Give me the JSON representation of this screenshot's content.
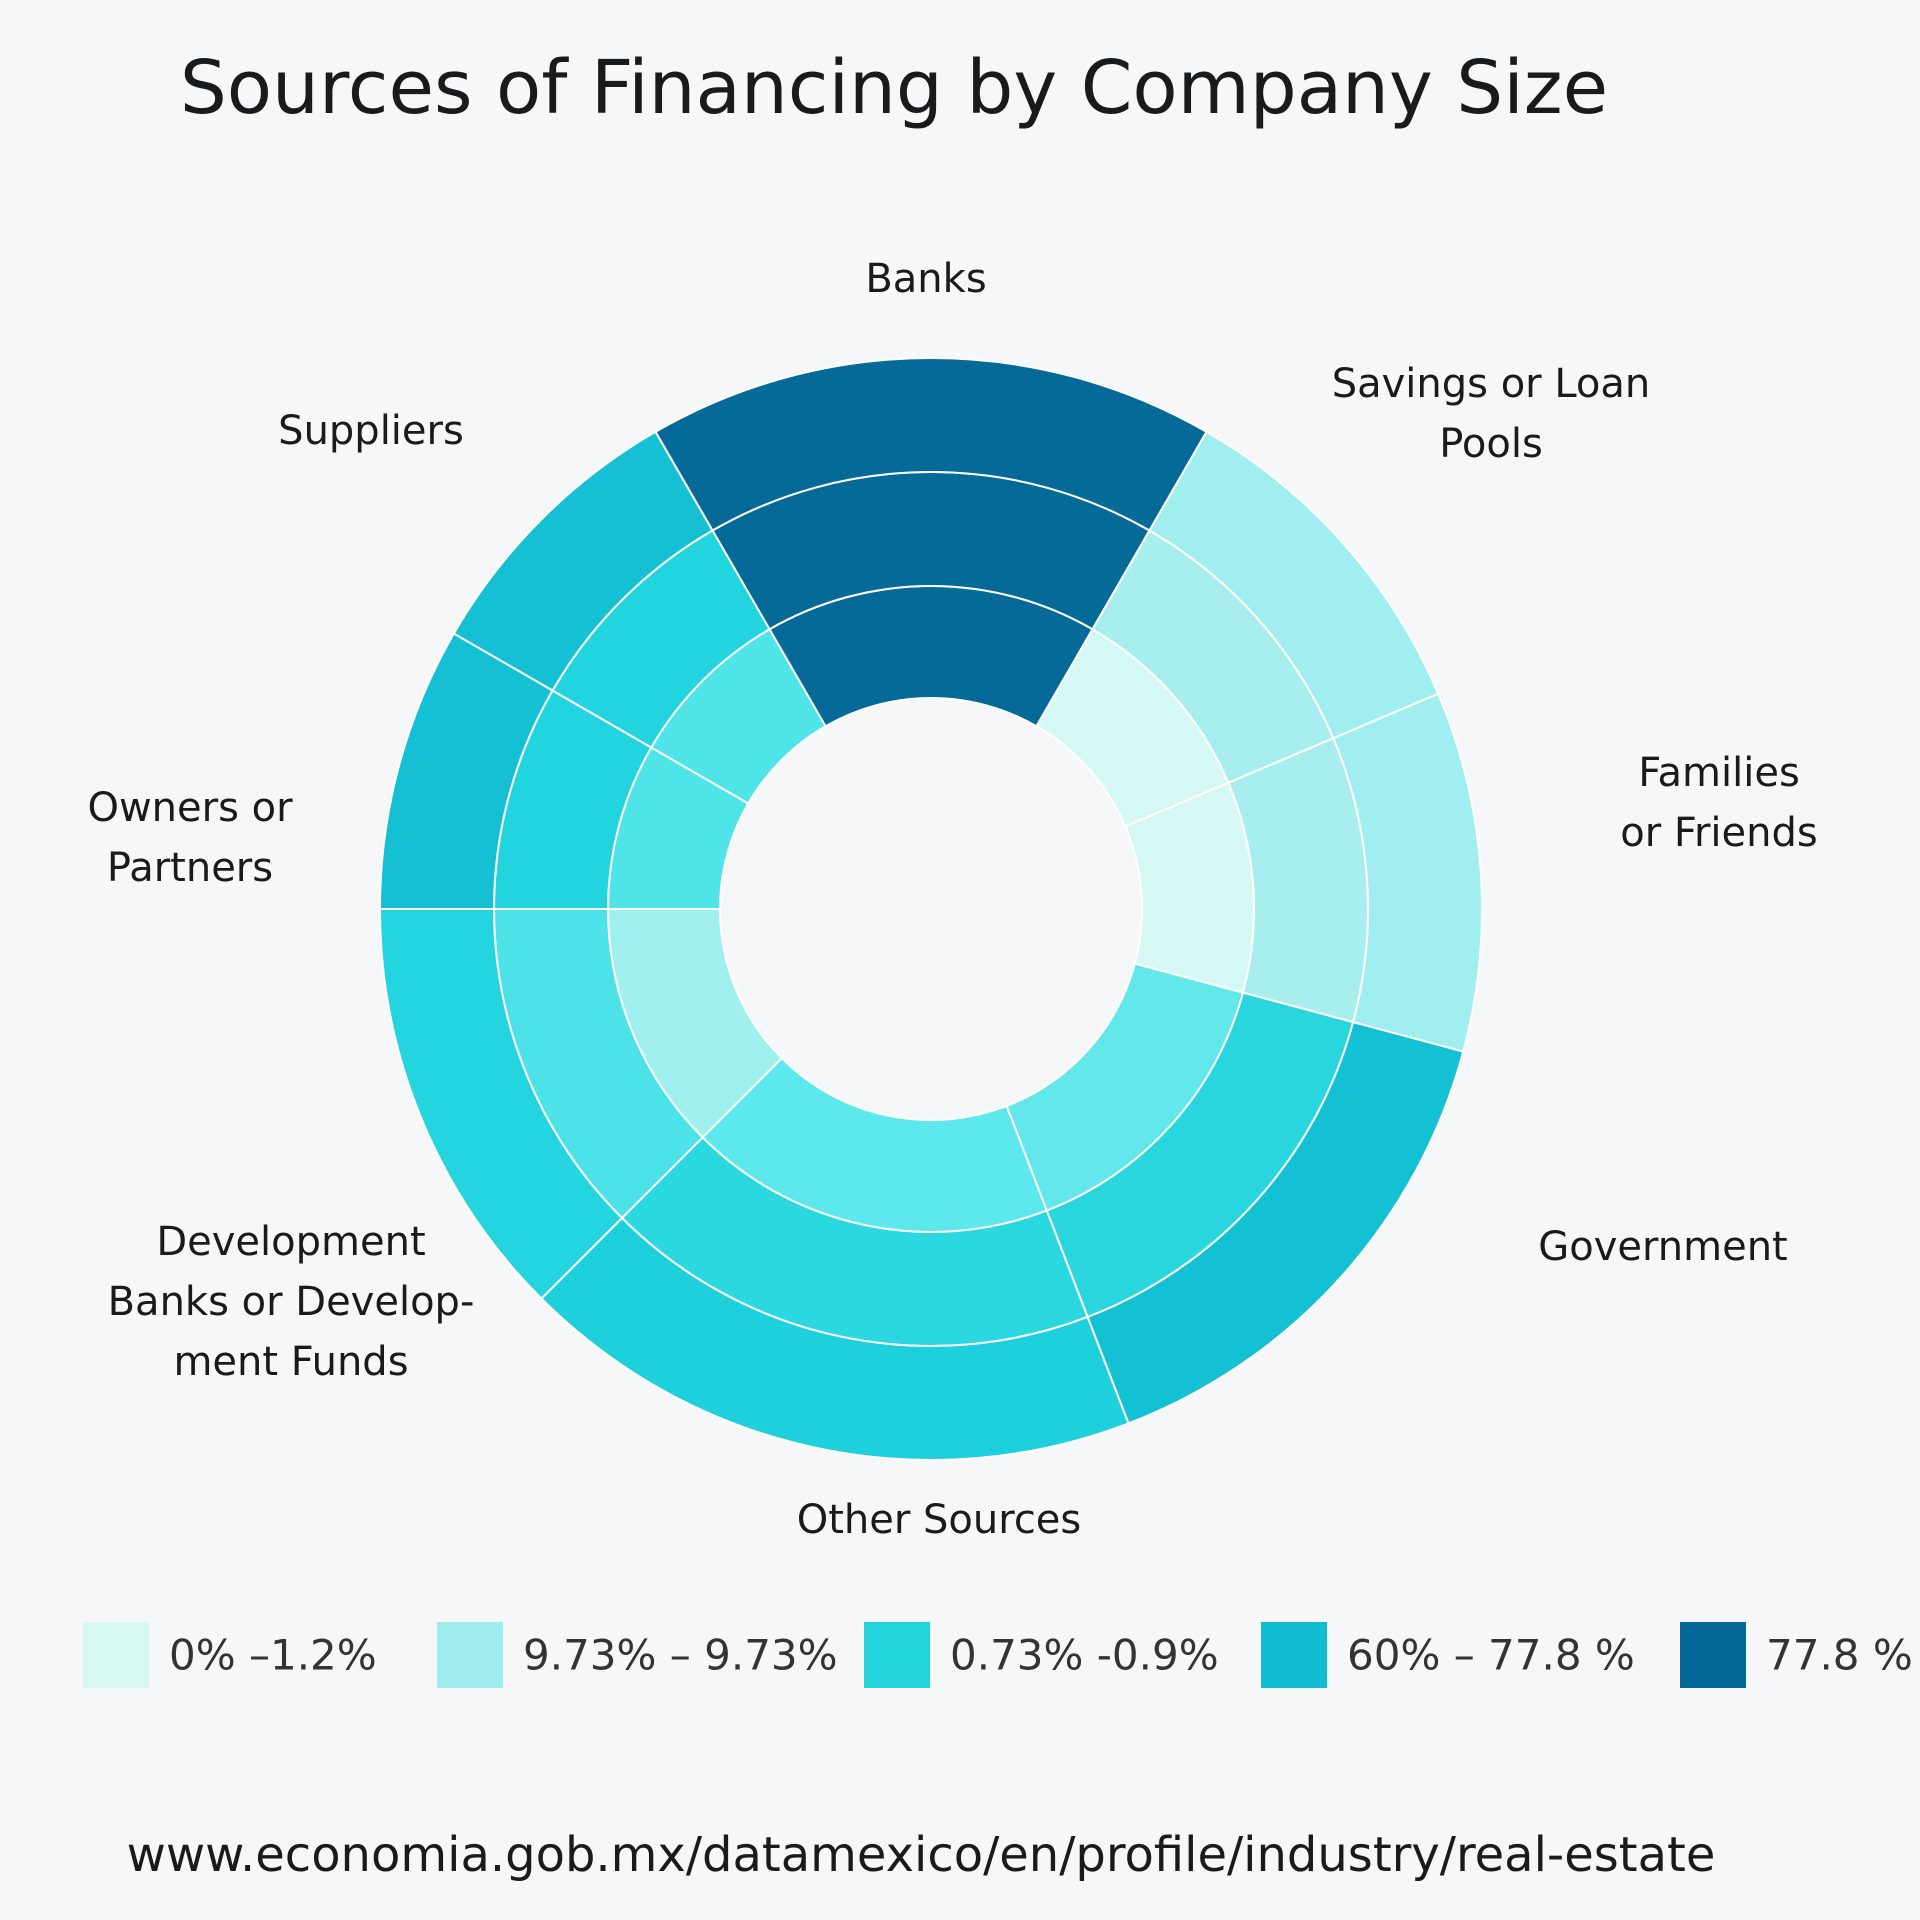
{
  "chart_data": {
    "type": "radial",
    "title": "Sources of Financing by Company Size",
    "categories": [
      "Banks",
      "Savings or Loan Pools",
      "Families or Friends",
      "Government",
      "Other Sources",
      "Development\nBanks or Develop-\nment Funds",
      "Owners  or\nPartners",
      "Suppliers"
    ],
    "values": [
      60,
      37,
      38,
      54,
      66,
      45,
      30,
      30
    ],
    "start_angle": -30,
    "rings": [
      {
        "colors": [
          "#066a98",
          "#d6f8f4",
          "#d6f8f4",
          "#62e8ea",
          "#5ce8ec",
          "#a0f0f0",
          "#4ee4e8",
          "#4ee4e8"
        ]
      },
      {
        "colors": [
          "#066a98",
          "#a8eeef",
          "#a8eeef",
          "#2ad6de",
          "#2cd8e0",
          "#4ce2e8",
          "#22d4de",
          "#22d4de"
        ]
      },
      {
        "colors": [
          "#066a98",
          "#a0eef0",
          "#a0eef0",
          "#14c0d4",
          "#1ed0dc",
          "#24d4de",
          "#16c0d4",
          "#16c0d4"
        ]
      }
    ],
    "legend": [
      {
        "label": "0% –1.2%",
        "color": "#d8f8f2"
      },
      {
        "label": "9.73% – 9.73%",
        "color": "#9eecf0"
      },
      {
        "label": "0.73% -0.9%",
        "color": "#22d3dc"
      },
      {
        "label": "60% – 77.8 %",
        "color": "#12bdd3"
      },
      {
        "label": "77.8 %",
        "color": "#006796"
      }
    ],
    "source": "www.economia.gob.mx/datamexico/en/profile/industry/real-estate"
  }
}
